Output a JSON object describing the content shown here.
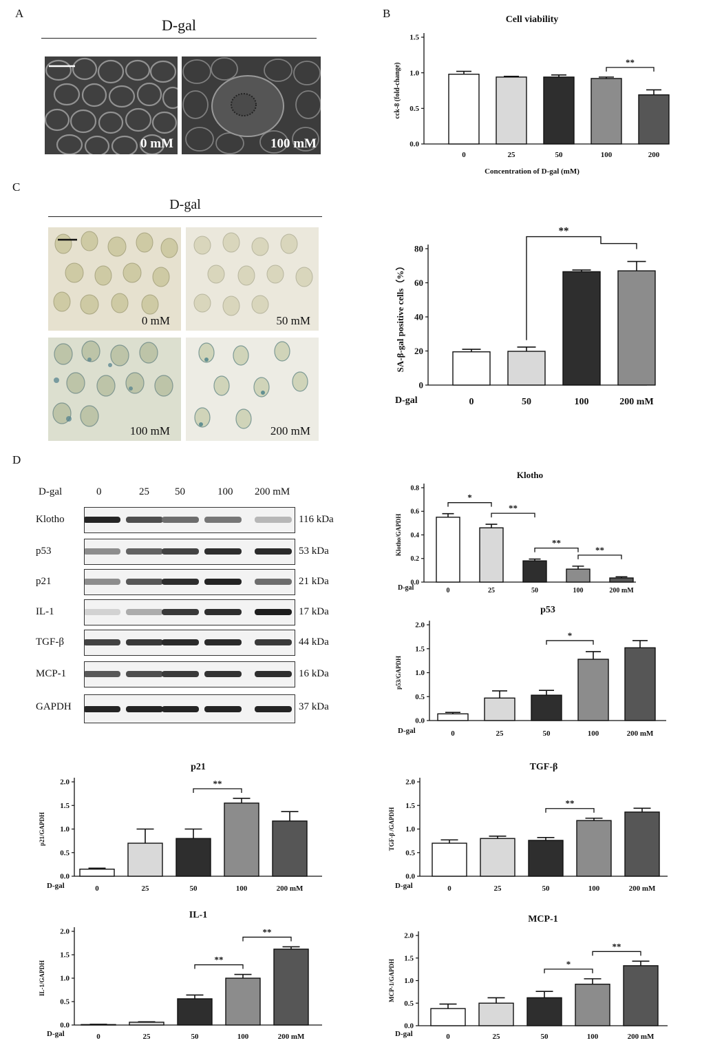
{
  "panels": {
    "A": "A",
    "B": "B",
    "C": "C",
    "D": "D"
  },
  "panelA": {
    "header": "D-gal",
    "images": [
      "0 mM",
      "100 mM"
    ]
  },
  "panelC": {
    "header": "D-gal",
    "images": [
      "0 mM",
      "50 mM",
      "100 mM",
      "200 mM"
    ]
  },
  "western": {
    "row_header": "D-gal",
    "lanes": [
      "0",
      "25",
      "50",
      "100",
      "200 mM"
    ],
    "bands": [
      {
        "name": "Klotho",
        "size": "116 kDa",
        "intensity": [
          0.95,
          0.75,
          0.6,
          0.55,
          0.25
        ]
      },
      {
        "name": "p53",
        "size": "53 kDa",
        "intensity": [
          0.45,
          0.65,
          0.8,
          0.9,
          0.92
        ]
      },
      {
        "name": "p21",
        "size": "21 kDa",
        "intensity": [
          0.45,
          0.7,
          0.9,
          0.95,
          0.6
        ]
      },
      {
        "name": "IL-1",
        "size": "17 kDa",
        "intensity": [
          0.12,
          0.3,
          0.85,
          0.9,
          0.98
        ]
      },
      {
        "name": "TGF-β",
        "size": "44 kDa",
        "intensity": [
          0.8,
          0.85,
          0.92,
          0.92,
          0.85
        ]
      },
      {
        "name": "MCP-1",
        "size": "16 kDa",
        "intensity": [
          0.7,
          0.75,
          0.85,
          0.88,
          0.9
        ]
      },
      {
        "name": "GAPDH",
        "size": "37 kDa",
        "intensity": [
          0.95,
          0.95,
          0.95,
          0.95,
          0.95
        ]
      }
    ]
  },
  "colors": {
    "c0": "#ffffff",
    "c1": "#d9d9d9",
    "c2": "#2e2e2e",
    "c3": "#8c8c8c",
    "c4": "#565656"
  },
  "chart_data": [
    {
      "id": "cell-viability",
      "type": "bar",
      "title": "Cell viability",
      "xlabel": "Concentration of D-gal (mM)",
      "ylabel": "cck-8 (fold-change)",
      "categories": [
        "0",
        "25",
        "50",
        "100",
        "200"
      ],
      "values": [
        0.98,
        0.94,
        0.94,
        0.92,
        0.69
      ],
      "errors": [
        0.04,
        0.01,
        0.03,
        0.02,
        0.07
      ],
      "ylim": [
        0,
        1.5
      ],
      "yticks": [
        "0.0",
        "0.5",
        "1.0",
        "1.5"
      ],
      "sig": [
        {
          "from": 3,
          "to": 4,
          "label": "**"
        }
      ]
    },
    {
      "id": "sa-beta-gal",
      "type": "bar",
      "title": "",
      "xlabel": "",
      "ylabel": "SA-β-gal positive cells（%）",
      "x_prefix": "D-gal",
      "categories": [
        "0",
        "50",
        "100",
        "200 mM"
      ],
      "values": [
        19.5,
        19.8,
        66.5,
        67.0
      ],
      "errors": [
        1.5,
        2.5,
        1.0,
        5.5
      ],
      "ylim": [
        0,
        80
      ],
      "yticks": [
        "0",
        "20",
        "40",
        "60",
        "80"
      ],
      "sig": [
        {
          "from": 1,
          "to": [
            2,
            3
          ],
          "label": "**"
        }
      ]
    },
    {
      "id": "klotho",
      "type": "bar",
      "title": "Klotho",
      "xlabel": "",
      "ylabel": "Klotho/GAPDH",
      "x_prefix": "D-gal",
      "categories": [
        "0",
        "25",
        "50",
        "100",
        "200 mM"
      ],
      "values": [
        0.55,
        0.46,
        0.18,
        0.11,
        0.035
      ],
      "errors": [
        0.03,
        0.03,
        0.015,
        0.025,
        0.01
      ],
      "ylim": [
        0,
        0.8
      ],
      "yticks": [
        "0.0",
        "0.2",
        "0.4",
        "0.6",
        "0.8"
      ],
      "sig": [
        {
          "from": 0,
          "to": 1,
          "label": "*"
        },
        {
          "from": 1,
          "to": 2,
          "label": "**"
        },
        {
          "from": 2,
          "to": 3,
          "label": "**"
        },
        {
          "from": 3,
          "to": 4,
          "label": "**"
        }
      ]
    },
    {
      "id": "p53",
      "type": "bar",
      "title": "p53",
      "xlabel": "",
      "ylabel": "p53/GAPDH",
      "x_prefix": "D-gal",
      "categories": [
        "0",
        "25",
        "50",
        "100",
        "200 mM"
      ],
      "values": [
        0.14,
        0.47,
        0.53,
        1.28,
        1.52
      ],
      "errors": [
        0.03,
        0.15,
        0.1,
        0.16,
        0.15
      ],
      "ylim": [
        0,
        2.0
      ],
      "yticks": [
        "0.0",
        "0.5",
        "1.0",
        "1.5",
        "2.0"
      ],
      "sig": [
        {
          "from": 2,
          "to": 3,
          "label": "*"
        }
      ]
    },
    {
      "id": "p21",
      "type": "bar",
      "title": "p21",
      "xlabel": "",
      "ylabel": "p21/GAPDH",
      "x_prefix": "D-gal",
      "categories": [
        "0",
        "25",
        "50",
        "100",
        "200 mM"
      ],
      "values": [
        0.15,
        0.7,
        0.8,
        1.55,
        1.17
      ],
      "errors": [
        0.02,
        0.3,
        0.2,
        0.1,
        0.2
      ],
      "ylim": [
        0,
        2.0
      ],
      "yticks": [
        "0.0",
        "0.5",
        "1.0",
        "1.5",
        "2.0"
      ],
      "sig": [
        {
          "from": 2,
          "to": 3,
          "label": "**"
        }
      ]
    },
    {
      "id": "tgf-beta",
      "type": "bar",
      "title": "TGF-β",
      "xlabel": "",
      "ylabel": "TGF-β /GAPDH",
      "x_prefix": "D-gal",
      "categories": [
        "0",
        "25",
        "50",
        "100",
        "200 mM"
      ],
      "values": [
        0.7,
        0.8,
        0.76,
        1.18,
        1.36
      ],
      "errors": [
        0.07,
        0.05,
        0.06,
        0.05,
        0.08
      ],
      "ylim": [
        0,
        2.0
      ],
      "yticks": [
        "0.0",
        "0.5",
        "1.0",
        "1.5",
        "2.0"
      ],
      "sig": [
        {
          "from": 2,
          "to": 3,
          "label": "**"
        }
      ]
    },
    {
      "id": "il-1",
      "type": "bar",
      "title": "IL-1",
      "xlabel": "",
      "ylabel": "IL-1/GAPDH",
      "x_prefix": "D-gal",
      "categories": [
        "0",
        "25",
        "50",
        "100",
        "200 mM"
      ],
      "values": [
        0.01,
        0.06,
        0.56,
        1.0,
        1.62
      ],
      "errors": [
        0.005,
        0.01,
        0.08,
        0.08,
        0.05
      ],
      "ylim": [
        0,
        2.0
      ],
      "yticks": [
        "0.0",
        "0.5",
        "1.0",
        "1.5",
        "2.0"
      ],
      "sig": [
        {
          "from": 2,
          "to": 3,
          "label": "**"
        },
        {
          "from": 3,
          "to": 4,
          "label": "**"
        }
      ]
    },
    {
      "id": "mcp-1",
      "type": "bar",
      "title": "MCP-1",
      "xlabel": "",
      "ylabel": "MCP-1/GAPDH",
      "x_prefix": "D-gal",
      "categories": [
        "0",
        "25",
        "50",
        "100",
        "200 mM"
      ],
      "values": [
        0.38,
        0.5,
        0.62,
        0.92,
        1.33
      ],
      "errors": [
        0.1,
        0.12,
        0.14,
        0.12,
        0.1
      ],
      "ylim": [
        0,
        2.0
      ],
      "yticks": [
        "0.0",
        "0.5",
        "1.0",
        "1.5",
        "2.0"
      ],
      "sig": [
        {
          "from": 2,
          "to": 3,
          "label": "*"
        },
        {
          "from": 3,
          "to": 4,
          "label": "**"
        }
      ]
    }
  ]
}
